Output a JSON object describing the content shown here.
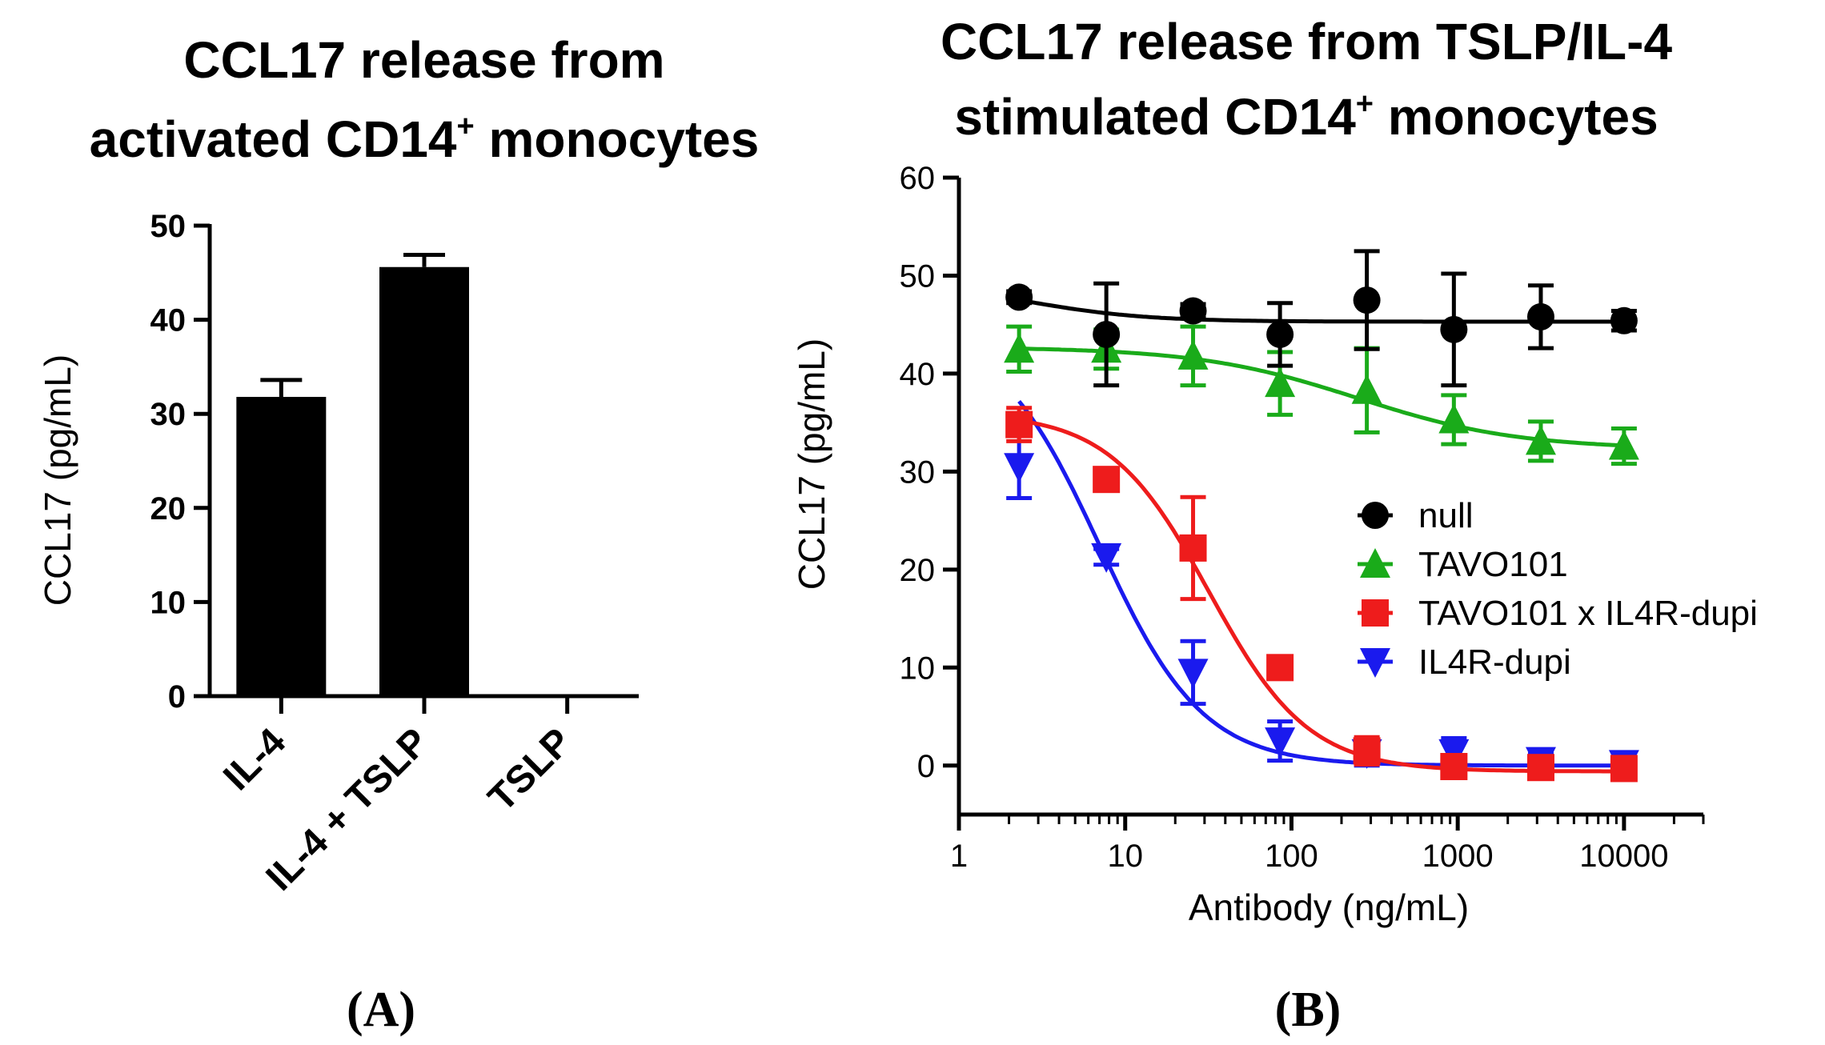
{
  "chart_data": [
    {
      "panel_label": "(A)",
      "type": "bar",
      "title_lines": [
        "CCL17 release from",
        "activated CD14",
        "+",
        " monocytes"
      ],
      "ylabel": "CCL17 (pg/mL)",
      "xlabel": "",
      "categories": [
        "IL-4",
        "IL-4 + TSLP",
        "TSLP"
      ],
      "values": [
        31.8,
        45.6,
        0
      ],
      "errors": [
        1.8,
        1.3,
        0
      ],
      "ylim": [
        0,
        50
      ],
      "yticks": [
        "0",
        "10",
        "20",
        "30",
        "40",
        "50"
      ],
      "grid": false,
      "colors": {
        "bar": "#000000"
      }
    },
    {
      "panel_label": "(B)",
      "type": "scatter",
      "title_lines": [
        "CCL17 release from TSLP/IL-4",
        "stimulated CD14",
        "+",
        " monocytes"
      ],
      "xlabel": "Antibody (ng/mL)",
      "ylabel": "CCL17 (pg/mL)",
      "xscale": "log",
      "xlim": [
        1,
        30000
      ],
      "ylim": [
        -5,
        60
      ],
      "xticks": [
        "1",
        "10",
        "100",
        "1000",
        "10000"
      ],
      "yticks": [
        "0",
        "10",
        "20",
        "30",
        "40",
        "50",
        "60"
      ],
      "legend_position": "right",
      "grid": false,
      "x": [
        2.3,
        7.7,
        25.6,
        85.3,
        284,
        948,
        3160,
        10000
      ],
      "series": [
        {
          "name": "null",
          "color": "#000000",
          "marker": "circle",
          "y": [
            47.8,
            44.0,
            46.4,
            44.0,
            47.5,
            44.5,
            45.8,
            45.4
          ],
          "err": [
            0.6,
            5.2,
            0.7,
            3.2,
            5.0,
            5.7,
            3.2,
            1.0
          ],
          "fit": {
            "bottom": 45.3,
            "top": 49.5,
            "ec50": 2.5,
            "hill": 1.2
          }
        },
        {
          "name": "TAVO101",
          "color": "#1aab1a",
          "marker": "triangle-up",
          "y": [
            42.5,
            42.5,
            41.8,
            39.0,
            38.3,
            35.3,
            33.1,
            32.6
          ],
          "err": [
            2.3,
            2.0,
            3.0,
            3.2,
            4.3,
            2.5,
            2.0,
            1.8
          ],
          "fit": {
            "bottom": 32.3,
            "top": 42.7,
            "ec50": 250,
            "hill": 0.9
          }
        },
        {
          "name": "TAVO101 x IL4R-dupi",
          "color": "#ee1c1c",
          "marker": "square",
          "y": [
            34.8,
            29.2,
            22.2,
            10.0,
            1.5,
            -0.1,
            -0.2,
            -0.3
          ],
          "err": [
            1.7,
            1.0,
            5.2,
            0.7,
            1.4,
            0.8,
            0.6,
            0.5
          ],
          "fit": {
            "bottom": -0.6,
            "top": 36.0,
            "ec50": 32,
            "hill": 1.45
          }
        },
        {
          "name": "IL4R-dupi",
          "color": "#1a1aee",
          "marker": "triangle-down",
          "y": [
            30.5,
            21.3,
            9.5,
            2.5,
            1.3,
            1.3,
            0.5,
            0.2
          ],
          "err": [
            3.2,
            0.8,
            3.2,
            2.0,
            1.3,
            1.5,
            0.8,
            0.5
          ],
          "fit": {
            "bottom": 0.0,
            "top": 45.0,
            "ec50": 7.0,
            "hill": 1.4
          }
        }
      ]
    }
  ]
}
